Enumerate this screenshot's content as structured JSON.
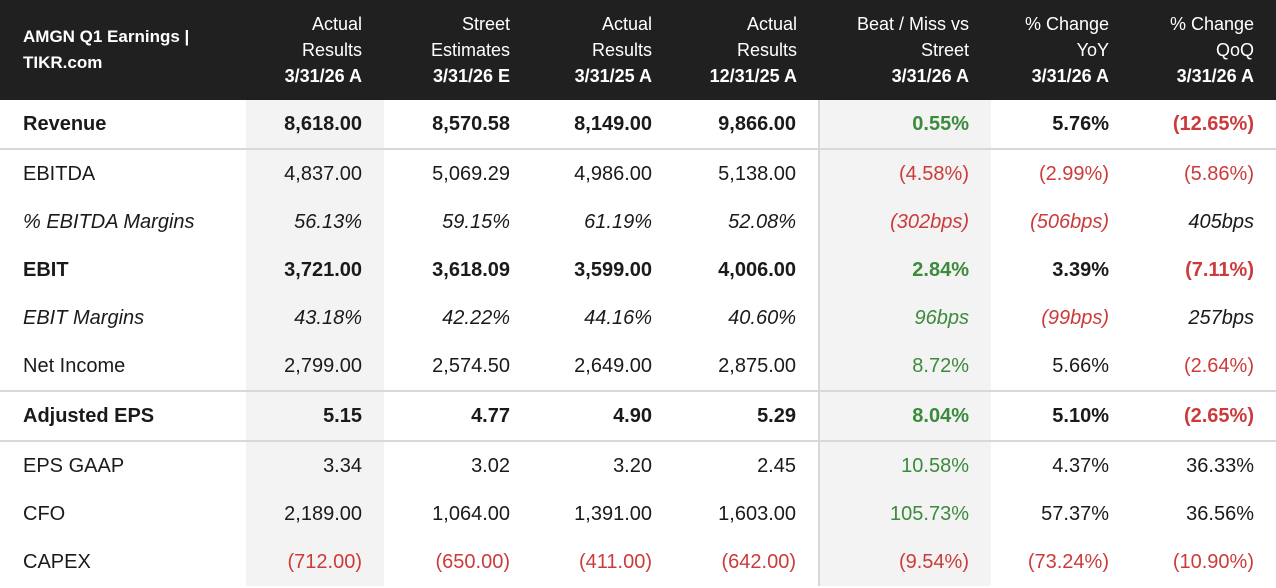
{
  "header": {
    "title_line1": "AMGN Q1 Earnings |",
    "title_line2": "TIKR.com",
    "columns": [
      {
        "l1": "Actual",
        "l2": "Results",
        "date": "3/31/26 A"
      },
      {
        "l1": "Street",
        "l2": "Estimates",
        "date": "3/31/26 E"
      },
      {
        "l1": "Actual",
        "l2": "Results",
        "date": "3/31/25 A"
      },
      {
        "l1": "Actual",
        "l2": "Results",
        "date": "12/31/25 A"
      },
      {
        "l1": "Beat / Miss vs",
        "l2": "Street",
        "date": "3/31/26 A"
      },
      {
        "l1": "% Change",
        "l2": "YoY",
        "date": "3/31/26 A"
      },
      {
        "l1": "% Change",
        "l2": "QoQ",
        "date": "3/31/26 A"
      }
    ]
  },
  "rows": [
    {
      "label": "Revenue",
      "style": "bold",
      "border_top": false,
      "values": [
        "8,618.00",
        "8,570.58",
        "8,149.00",
        "9,866.00",
        "0.55%",
        "5.76%",
        "(12.65%)"
      ],
      "tones": [
        "neu",
        "neu",
        "neu",
        "neu",
        "pos",
        "neu",
        "neg"
      ]
    },
    {
      "label": "EBITDA",
      "style": "normal",
      "border_top": true,
      "values": [
        "4,837.00",
        "5,069.29",
        "4,986.00",
        "5,138.00",
        "(4.58%)",
        "(2.99%)",
        "(5.86%)"
      ],
      "tones": [
        "neu",
        "neu",
        "neu",
        "neu",
        "neg",
        "neg",
        "neg"
      ]
    },
    {
      "label": "% EBITDA Margins",
      "style": "italic",
      "border_top": false,
      "values": [
        "56.13%",
        "59.15%",
        "61.19%",
        "52.08%",
        "(302bps)",
        "(506bps)",
        "405bps"
      ],
      "tones": [
        "neu",
        "neu",
        "neu",
        "neu",
        "neg",
        "neg",
        "neu"
      ]
    },
    {
      "label": "EBIT",
      "style": "bold",
      "border_top": false,
      "values": [
        "3,721.00",
        "3,618.09",
        "3,599.00",
        "4,006.00",
        "2.84%",
        "3.39%",
        "(7.11%)"
      ],
      "tones": [
        "neu",
        "neu",
        "neu",
        "neu",
        "pos",
        "neu",
        "neg"
      ]
    },
    {
      "label": "EBIT Margins",
      "style": "italic",
      "border_top": false,
      "values": [
        "43.18%",
        "42.22%",
        "44.16%",
        "40.60%",
        "96bps",
        "(99bps)",
        "257bps"
      ],
      "tones": [
        "neu",
        "neu",
        "neu",
        "neu",
        "pos",
        "neg",
        "neu"
      ]
    },
    {
      "label": "Net Income",
      "style": "normal",
      "border_top": false,
      "values": [
        "2,799.00",
        "2,574.50",
        "2,649.00",
        "2,875.00",
        "8.72%",
        "5.66%",
        "(2.64%)"
      ],
      "tones": [
        "neu",
        "neu",
        "neu",
        "neu",
        "pos",
        "neu",
        "neg"
      ]
    },
    {
      "label": "Adjusted EPS",
      "style": "bold",
      "border_top": true,
      "values": [
        "5.15",
        "4.77",
        "4.90",
        "5.29",
        "8.04%",
        "5.10%",
        "(2.65%)"
      ],
      "tones": [
        "neu",
        "neu",
        "neu",
        "neu",
        "pos",
        "neu",
        "neg"
      ]
    },
    {
      "label": "EPS GAAP",
      "style": "normal",
      "border_top": true,
      "values": [
        "3.34",
        "3.02",
        "3.20",
        "2.45",
        "10.58%",
        "4.37%",
        "36.33%"
      ],
      "tones": [
        "neu",
        "neu",
        "neu",
        "neu",
        "pos",
        "neu",
        "neu"
      ]
    },
    {
      "label": "CFO",
      "style": "normal",
      "border_top": false,
      "values": [
        "2,189.00",
        "1,064.00",
        "1,391.00",
        "1,603.00",
        "105.73%",
        "57.37%",
        "36.56%"
      ],
      "tones": [
        "neu",
        "neu",
        "neu",
        "neu",
        "pos",
        "neu",
        "neu"
      ]
    },
    {
      "label": "CAPEX",
      "style": "normal",
      "border_top": false,
      "values": [
        "(712.00)",
        "(650.00)",
        "(411.00)",
        "(642.00)",
        "(9.54%)",
        "(73.24%)",
        "(10.90%)"
      ],
      "tones": [
        "neg",
        "neg",
        "neg",
        "neg",
        "neg",
        "neg",
        "neg"
      ]
    }
  ],
  "colors": {
    "positive": "#3c8a3c",
    "negative": "#cc3b3b",
    "header_bg": "#202020",
    "shaded_col": "#f3f3f3"
  }
}
